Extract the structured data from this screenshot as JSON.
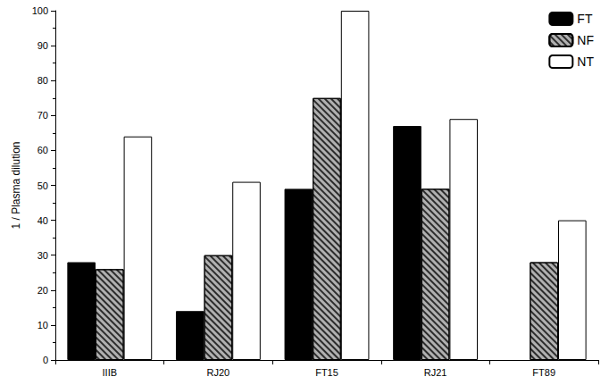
{
  "chart_data": {
    "type": "bar",
    "y_label": "1 / Plasma dilution",
    "categories": [
      "IIIB",
      "RJ20",
      "FT15",
      "RJ21",
      "FT89"
    ],
    "series": [
      {
        "name": "FT",
        "color": "#000000",
        "values": [
          28,
          14,
          49,
          67,
          null
        ]
      },
      {
        "name": "NF",
        "color": "#b0b0b0",
        "values": [
          26,
          30,
          75,
          49,
          28
        ]
      },
      {
        "name": "NT",
        "color": "#ffffff",
        "values": [
          64,
          51,
          100,
          69,
          40
        ]
      }
    ],
    "ylim": [
      0,
      100
    ],
    "yticks": [
      0,
      10,
      20,
      30,
      40,
      50,
      60,
      70,
      80,
      90,
      100
    ],
    "grid": false,
    "legend": "upper right"
  }
}
